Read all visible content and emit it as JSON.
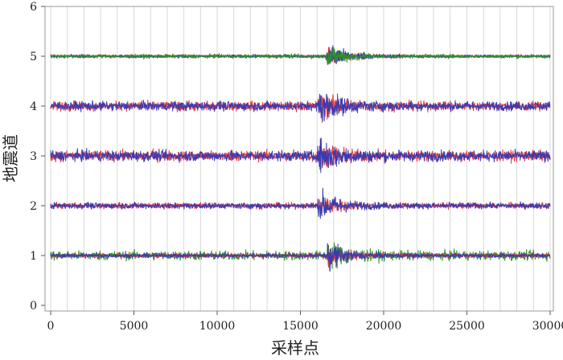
{
  "chart_data": {
    "type": "line",
    "title": "",
    "xlabel": "采样点",
    "ylabel": "地震道",
    "xlim": [
      0,
      30000
    ],
    "ylim": [
      0,
      6
    ],
    "x_ticks": [
      "0",
      "5000",
      "10000",
      "15000",
      "20000",
      "25000",
      "30000"
    ],
    "y_ticks": [
      "0",
      "1",
      "2",
      "3",
      "4",
      "5",
      "6"
    ],
    "grid": true,
    "traces": [
      {
        "offset": 5,
        "onset": 16500,
        "noise_amp": 0.045,
        "event_amp": 0.48,
        "colors": [
          "#e23a3a",
          "#3b3bb0"
        ],
        "order": [
          "#e23a3a",
          "#3b3bb0",
          "#2f8f2f"
        ],
        "green_noise": 0.06
      },
      {
        "offset": 4,
        "onset": 16000,
        "noise_amp": 0.14,
        "event_amp": 0.55,
        "colors": [
          "#e23a3a",
          "#3b3bb0"
        ],
        "order": [
          "#e23a3a",
          "#3b3bb0"
        ]
      },
      {
        "offset": 3,
        "onset": 16000,
        "noise_amp": 0.16,
        "event_amp": 0.55,
        "colors": [
          "#e23a3a",
          "#3b3bb0"
        ],
        "order": [
          "#e23a3a",
          "#3b3bb0"
        ]
      },
      {
        "offset": 2,
        "onset": 16000,
        "noise_amp": 0.09,
        "event_amp": 0.5,
        "colors": [
          "#e23a3a",
          "#3b3bb0"
        ],
        "order": [
          "#e23a3a",
          "#3b3bb0"
        ]
      },
      {
        "offset": 1,
        "onset": 16500,
        "noise_amp": 0.06,
        "event_amp": 0.5,
        "colors": [
          "#e23a3a",
          "#3b3bb0",
          "#2f8f2f"
        ],
        "order": [
          "#2f8f2f",
          "#e23a3a",
          "#3b3bb0"
        ],
        "green_noise": 0.14
      }
    ],
    "colors": {
      "red": "#e23a3a",
      "blue": "#3b3bb0",
      "green": "#2f8f2f",
      "grid": "#d9d9d9",
      "frame": "#9a9a9a"
    }
  }
}
